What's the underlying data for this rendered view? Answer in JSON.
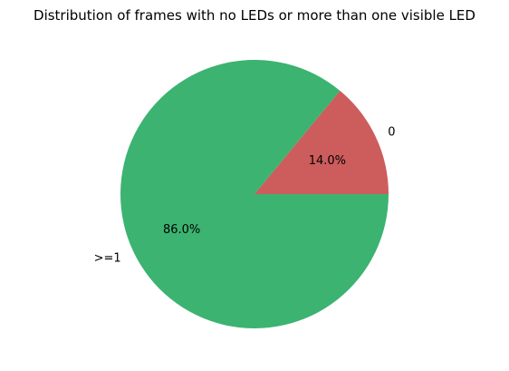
{
  "chart_data": {
    "type": "pie",
    "title": "Distribution of frames with no LEDs or more than one visible LED",
    "slices": [
      {
        "label": "0",
        "value": 14.0,
        "pct_label": "14.0%",
        "color": "#cd5c5c"
      },
      {
        "label": ">=1",
        "value": 86.0,
        "pct_label": "86.0%",
        "color": "#3cb371"
      }
    ],
    "start_angle_deg": 0,
    "counterclockwise": true,
    "legend": "none"
  }
}
